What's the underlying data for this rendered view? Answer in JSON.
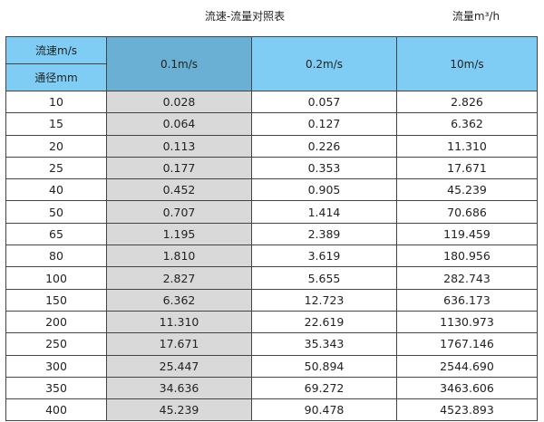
{
  "title": "流速-流量对照表",
  "unit": "流量m³/h",
  "header": {
    "velocity_label": "流速m/s",
    "diameter_label": "通径mm",
    "columns": [
      "0.1m/s",
      "0.2m/s",
      "10m/s"
    ]
  },
  "colors": {
    "header_bg": "#7fcdf4",
    "selected_header_bg": "#6ab0d5",
    "highlight_column_bg": "#d9d9d9"
  },
  "rows": [
    [
      "10",
      "0.028",
      "0.057",
      "2.826"
    ],
    [
      "15",
      "0.064",
      "0.127",
      "6.362"
    ],
    [
      "20",
      "0.113",
      "0.226",
      "11.310"
    ],
    [
      "25",
      "0.177",
      "0.353",
      "17.671"
    ],
    [
      "40",
      "0.452",
      "0.905",
      "45.239"
    ],
    [
      "50",
      "0.707",
      "1.414",
      "70.686"
    ],
    [
      "65",
      "1.195",
      "2.389",
      "119.459"
    ],
    [
      "80",
      "1.810",
      "3.619",
      "180.956"
    ],
    [
      "100",
      "2.827",
      "5.655",
      "282.743"
    ],
    [
      "150",
      "6.362",
      "12.723",
      "636.173"
    ],
    [
      "200",
      "11.310",
      "22.619",
      "1130.973"
    ],
    [
      "250",
      "17.671",
      "35.343",
      "1767.146"
    ],
    [
      "300",
      "25.447",
      "50.894",
      "2544.690"
    ],
    [
      "350",
      "34.636",
      "69.272",
      "3463.606"
    ],
    [
      "400",
      "45.239",
      "90.478",
      "4523.893"
    ]
  ]
}
